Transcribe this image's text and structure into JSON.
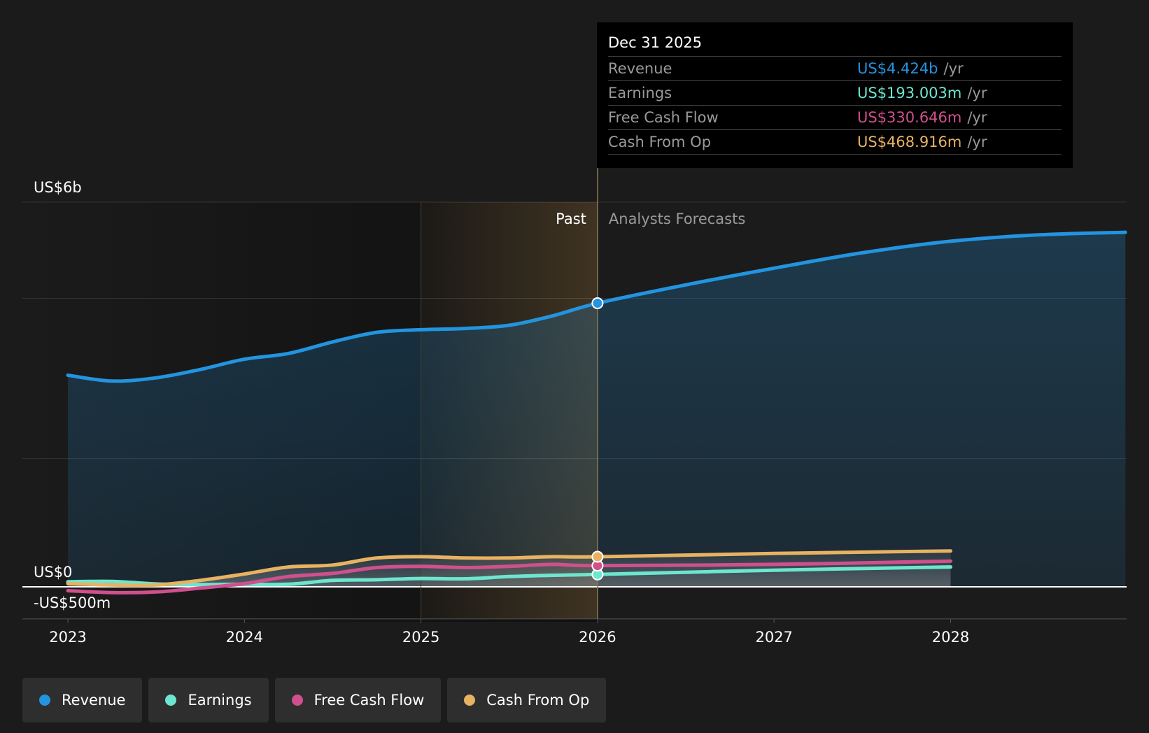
{
  "chart_data": {
    "type": "line",
    "x_domain": [
      2023,
      2028.99
    ],
    "ylim": [
      -500,
      6000
    ],
    "y_labels": [
      {
        "value": 6000,
        "label": "US$6b"
      },
      {
        "value": 0,
        "label": "US$0"
      },
      {
        "value": -500,
        "label": "-US$500m"
      }
    ],
    "x_ticks": [
      {
        "value": 2023,
        "label": "2023"
      },
      {
        "value": 2024,
        "label": "2024"
      },
      {
        "value": 2025,
        "label": "2025"
      },
      {
        "value": 2026,
        "label": "2026"
      },
      {
        "value": 2027,
        "label": "2027"
      },
      {
        "value": 2028,
        "label": "2028"
      }
    ],
    "gridlines": [
      6000,
      4500,
      2000
    ],
    "highlight_start": 2025,
    "divider": 2026,
    "past_label": "Past",
    "forecast_label": "Analysts Forecasts",
    "series": [
      {
        "name": "Revenue",
        "color": "#2394df",
        "values": [
          [
            2023,
            3300
          ],
          [
            2023.25,
            3210
          ],
          [
            2023.5,
            3260
          ],
          [
            2023.75,
            3390
          ],
          [
            2024,
            3550
          ],
          [
            2024.25,
            3640
          ],
          [
            2024.5,
            3820
          ],
          [
            2024.75,
            3970
          ],
          [
            2025,
            4010
          ],
          [
            2025.25,
            4030
          ],
          [
            2025.5,
            4080
          ],
          [
            2025.75,
            4230
          ],
          [
            2026,
            4424
          ],
          [
            2026.5,
            4710
          ],
          [
            2027,
            4970
          ],
          [
            2027.5,
            5210
          ],
          [
            2028,
            5390
          ],
          [
            2028.5,
            5490
          ],
          [
            2028.99,
            5530
          ]
        ]
      },
      {
        "name": "Earnings",
        "color": "#6de6cf",
        "values": [
          [
            2023,
            80
          ],
          [
            2023.25,
            85
          ],
          [
            2023.5,
            45
          ],
          [
            2023.75,
            35
          ],
          [
            2024,
            40
          ],
          [
            2024.25,
            40
          ],
          [
            2024.5,
            100
          ],
          [
            2024.75,
            110
          ],
          [
            2025,
            130
          ],
          [
            2025.25,
            125
          ],
          [
            2025.5,
            160
          ],
          [
            2025.75,
            180
          ],
          [
            2026,
            193.003
          ],
          [
            2027,
            260
          ],
          [
            2028,
            310
          ]
        ]
      },
      {
        "name": "Free Cash Flow",
        "color": "#d0508e",
        "values": [
          [
            2023,
            -60
          ],
          [
            2023.25,
            -90
          ],
          [
            2023.5,
            -80
          ],
          [
            2023.75,
            -20
          ],
          [
            2024,
            50
          ],
          [
            2024.25,
            160
          ],
          [
            2024.5,
            210
          ],
          [
            2024.75,
            300
          ],
          [
            2025,
            320
          ],
          [
            2025.25,
            300
          ],
          [
            2025.5,
            320
          ],
          [
            2025.75,
            350
          ],
          [
            2026,
            330.646
          ],
          [
            2027,
            350
          ],
          [
            2028,
            400
          ]
        ]
      },
      {
        "name": "Cash From Op",
        "color": "#e8b263",
        "values": [
          [
            2023,
            50
          ],
          [
            2023.25,
            30
          ],
          [
            2023.5,
            30
          ],
          [
            2023.75,
            100
          ],
          [
            2024,
            200
          ],
          [
            2024.25,
            310
          ],
          [
            2024.5,
            340
          ],
          [
            2024.75,
            450
          ],
          [
            2025,
            470
          ],
          [
            2025.25,
            450
          ],
          [
            2025.5,
            450
          ],
          [
            2025.75,
            470
          ],
          [
            2026,
            468.916
          ],
          [
            2027,
            520
          ],
          [
            2028,
            560
          ]
        ]
      }
    ]
  },
  "tooltip": {
    "date": "Dec 31 2025",
    "unit": "/yr",
    "rows": [
      {
        "label": "Revenue",
        "value": "US$4.424b",
        "color": "#2394df"
      },
      {
        "label": "Earnings",
        "value": "US$193.003m",
        "color": "#6de6cf"
      },
      {
        "label": "Free Cash Flow",
        "value": "US$330.646m",
        "color": "#d0508e"
      },
      {
        "label": "Cash From Op",
        "value": "US$468.916m",
        "color": "#e8b263"
      }
    ]
  },
  "legend": [
    {
      "label": "Revenue",
      "color": "#2394df"
    },
    {
      "label": "Earnings",
      "color": "#6de6cf"
    },
    {
      "label": "Free Cash Flow",
      "color": "#d0508e"
    },
    {
      "label": "Cash From Op",
      "color": "#e8b263"
    }
  ]
}
